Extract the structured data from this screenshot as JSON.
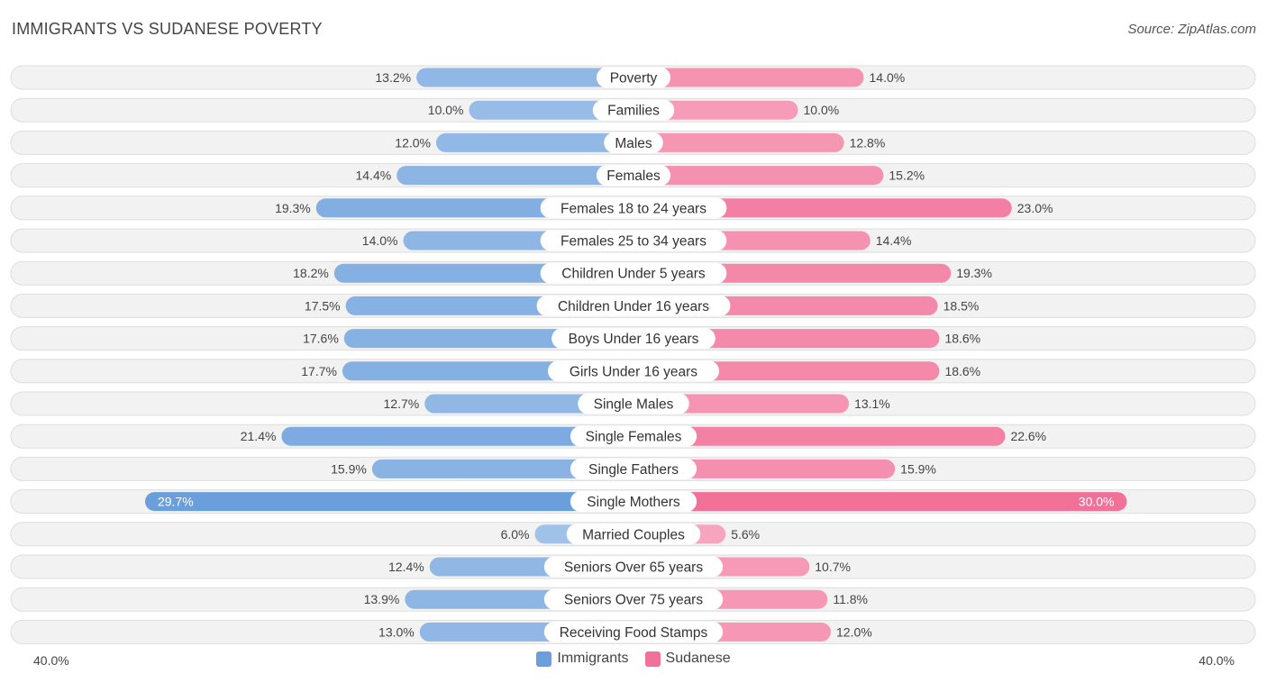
{
  "header": {
    "title": "IMMIGRANTS VS SUDANESE POVERTY",
    "source": "Source: ZipAtlas.com"
  },
  "axis": {
    "left_label": "40.0%",
    "right_label": "40.0%"
  },
  "legend": {
    "items": [
      {
        "label": "Immigrants",
        "color": "#6a9fdc"
      },
      {
        "label": "Sudanese",
        "color": "#f27199"
      }
    ]
  },
  "chart_data": {
    "type": "bar",
    "orientation": "horizontal-diverging",
    "title": "IMMIGRANTS VS SUDANESE POVERTY",
    "xlim": [
      -40,
      40
    ],
    "unit": "%",
    "categories": [
      "Poverty",
      "Families",
      "Males",
      "Females",
      "Females 18 to 24 years",
      "Females 25 to 34 years",
      "Children Under 5 years",
      "Children Under 16 years",
      "Boys Under 16 years",
      "Girls Under 16 years",
      "Single Males",
      "Single Females",
      "Single Fathers",
      "Single Mothers",
      "Married Couples",
      "Seniors Over 65 years",
      "Seniors Over 75 years",
      "Receiving Food Stamps"
    ],
    "series": [
      {
        "name": "Immigrants",
        "color": "#6a9fdc",
        "values": [
          13.2,
          10.0,
          12.0,
          14.4,
          19.3,
          14.0,
          18.2,
          17.5,
          17.6,
          17.7,
          12.7,
          21.4,
          15.9,
          29.7,
          6.0,
          12.4,
          13.9,
          13.0
        ],
        "labels": [
          "13.2%",
          "10.0%",
          "12.0%",
          "14.4%",
          "19.3%",
          "14.0%",
          "18.2%",
          "17.5%",
          "17.6%",
          "17.7%",
          "12.7%",
          "21.4%",
          "15.9%",
          "29.7%",
          "6.0%",
          "12.4%",
          "13.9%",
          "13.0%"
        ]
      },
      {
        "name": "Sudanese",
        "color": "#f27199",
        "values": [
          14.0,
          10.0,
          12.8,
          15.2,
          23.0,
          14.4,
          19.3,
          18.5,
          18.6,
          18.6,
          13.1,
          22.6,
          15.9,
          30.0,
          5.6,
          10.7,
          11.8,
          12.0
        ],
        "labels": [
          "14.0%",
          "10.0%",
          "12.8%",
          "15.2%",
          "23.0%",
          "14.4%",
          "19.3%",
          "18.5%",
          "18.6%",
          "18.6%",
          "13.1%",
          "22.6%",
          "15.9%",
          "30.0%",
          "5.6%",
          "10.7%",
          "11.8%",
          "12.0%"
        ]
      }
    ]
  }
}
